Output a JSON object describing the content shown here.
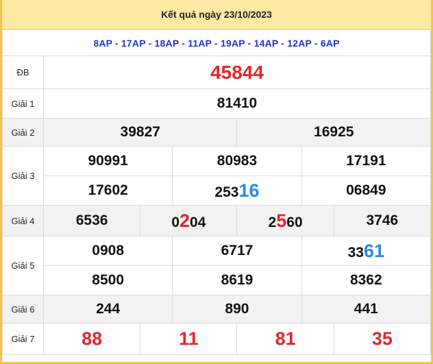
{
  "header": {
    "title": "Kết quả ngày 23/10/2023"
  },
  "codes": "8AP - 17AP - 18AP - 11AP - 19AP - 14AP - 12AP - 6AP",
  "labels": {
    "db": "ĐB",
    "g1": "Giải 1",
    "g2": "Giải 2",
    "g3": "Giải 3",
    "g4": "Giải 4",
    "g5": "Giải 5",
    "g6": "Giải 6",
    "g7": "Giải 7"
  },
  "results": {
    "db": "45844",
    "g1": "81410",
    "g2": [
      "39827",
      "16925"
    ],
    "g3": [
      {
        "pre": "90991",
        "hl": ""
      },
      {
        "pre": "80983",
        "hl": ""
      },
      {
        "pre": "17191",
        "hl": ""
      },
      {
        "pre": "17602",
        "hl": ""
      },
      {
        "pre": "253",
        "hl": "16"
      },
      {
        "pre": "06849",
        "hl": ""
      }
    ],
    "g4": [
      {
        "pre": "6536",
        "hl": "",
        "post": ""
      },
      {
        "pre": "0",
        "hl": "2",
        "post": "04"
      },
      {
        "pre": "2",
        "hl": "5",
        "post": "60"
      },
      {
        "pre": "3746",
        "hl": "",
        "post": ""
      }
    ],
    "g5": [
      {
        "pre": "0908",
        "hl": ""
      },
      {
        "pre": "6717",
        "hl": ""
      },
      {
        "pre": "33",
        "hl": "61"
      },
      {
        "pre": "8500",
        "hl": ""
      },
      {
        "pre": "8619",
        "hl": ""
      },
      {
        "pre": "8362",
        "hl": ""
      }
    ],
    "g6": [
      "244",
      "890",
      "441"
    ],
    "g7": [
      "88",
      "11",
      "81",
      "35"
    ]
  },
  "colors": {
    "red": "#e3262b",
    "blue": "#2b89e6",
    "code_blue": "#1a37c9",
    "header_bg": "#ffe9a3",
    "border": "#f5c543"
  }
}
